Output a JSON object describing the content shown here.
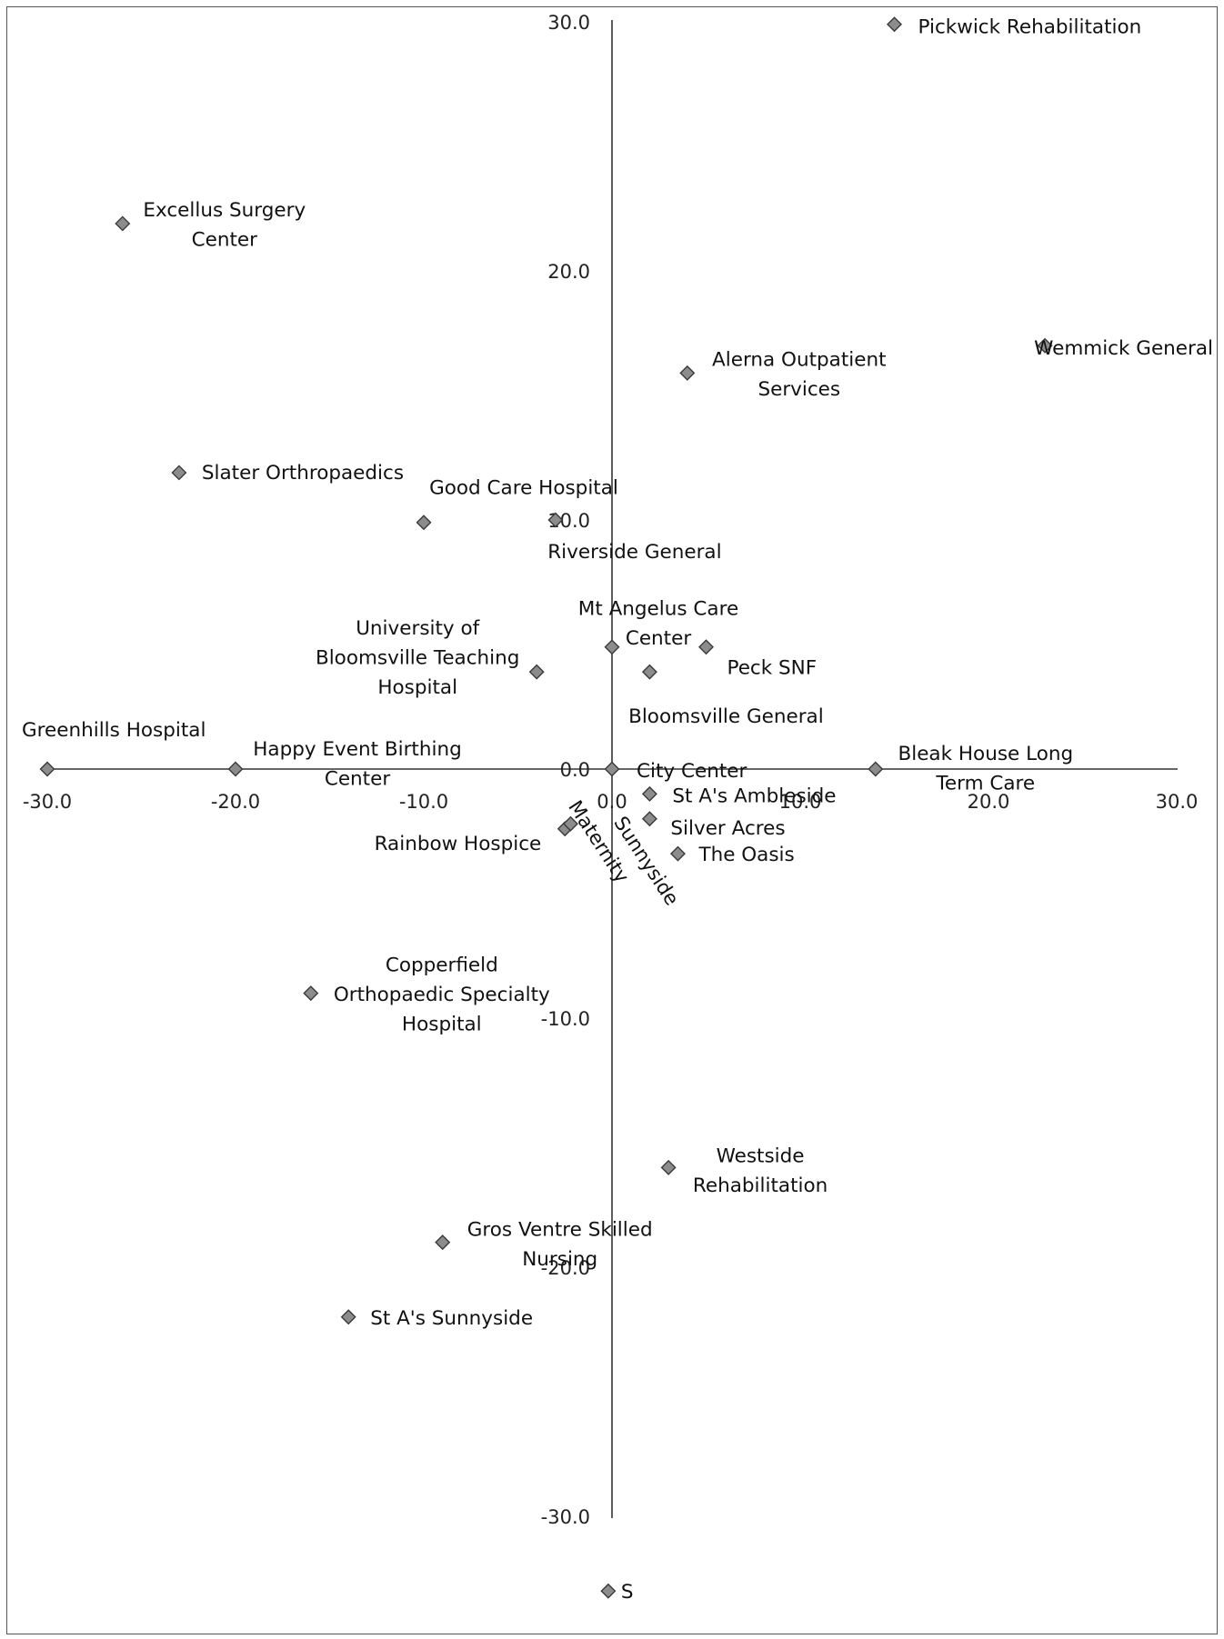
{
  "chart_data": {
    "type": "scatter",
    "title": "",
    "xlabel": "",
    "ylabel": "",
    "xlim": [
      -30,
      30
    ],
    "ylim": [
      -30,
      30
    ],
    "x_ticks": [
      "-30.0",
      "-20.0",
      "-10.0",
      "0.0",
      "10.0",
      "20.0",
      "30.0"
    ],
    "y_ticks": [
      "30.0",
      "20.0",
      "10.0",
      "0.0",
      "-10.0",
      "-20.0",
      "-30.0"
    ],
    "grid": false,
    "legend": "none",
    "marker_color": "#8c8c8c",
    "points": [
      {
        "label": "Pickwick Rehabilitation",
        "x": 15.0,
        "y": 29.9
      },
      {
        "label": "Excellus Surgery Center",
        "x": -26.0,
        "y": 21.9
      },
      {
        "label": "Wemmick General",
        "x": 23.0,
        "y": 17.0
      },
      {
        "label": "Alerna Outpatient Services",
        "x": 4.0,
        "y": 15.9
      },
      {
        "label": "Slater Orthropaedics",
        "x": -23.0,
        "y": 11.9
      },
      {
        "label": "Good Care Hospital",
        "x": -10.0,
        "y": 9.9
      },
      {
        "label": "Riverside General",
        "x": -3.0,
        "y": 10.0
      },
      {
        "label": "Mt Angelus Care Center",
        "x": 0.0,
        "y": 4.9
      },
      {
        "label": "Peck SNF",
        "x": 5.0,
        "y": 4.9
      },
      {
        "label": "University of Bloomsville Teaching Hospital",
        "x": -4.0,
        "y": 3.9
      },
      {
        "label": "Bloomsville General",
        "x": 2.0,
        "y": 3.9
      },
      {
        "label": "Greenhills Hospital",
        "x": -30.0,
        "y": 0.0
      },
      {
        "label": "Happy Event Birthing Center",
        "x": -20.0,
        "y": 0.0
      },
      {
        "label": "City Center",
        "x": 0.0,
        "y": 0.0
      },
      {
        "label": "Bleak House Long Term Care",
        "x": 14.0,
        "y": 0.0
      },
      {
        "label": "St A's Ambleside",
        "x": 2.0,
        "y": -1.0
      },
      {
        "label": "Silver Acres",
        "x": 2.0,
        "y": -2.0
      },
      {
        "label": "Rainbow Hospice",
        "x": -2.5,
        "y": -2.4
      },
      {
        "label": "Sunnyside Maternity",
        "x": -2.2,
        "y": -2.2
      },
      {
        "label": "The Oasis",
        "x": 3.5,
        "y": -3.4
      },
      {
        "label": "Copperfield Orthopaedic Specialty Hospital",
        "x": -16.0,
        "y": -9.0
      },
      {
        "label": "Westside Rehabilitation",
        "x": 3.0,
        "y": -16.0
      },
      {
        "label": "Gros Ventre Skilled Nursing",
        "x": -9.0,
        "y": -19.0
      },
      {
        "label": "St A's Sunnyside",
        "x": -14.0,
        "y": -22.0
      },
      {
        "label": "S",
        "x": -0.2,
        "y": -33.0
      }
    ]
  }
}
